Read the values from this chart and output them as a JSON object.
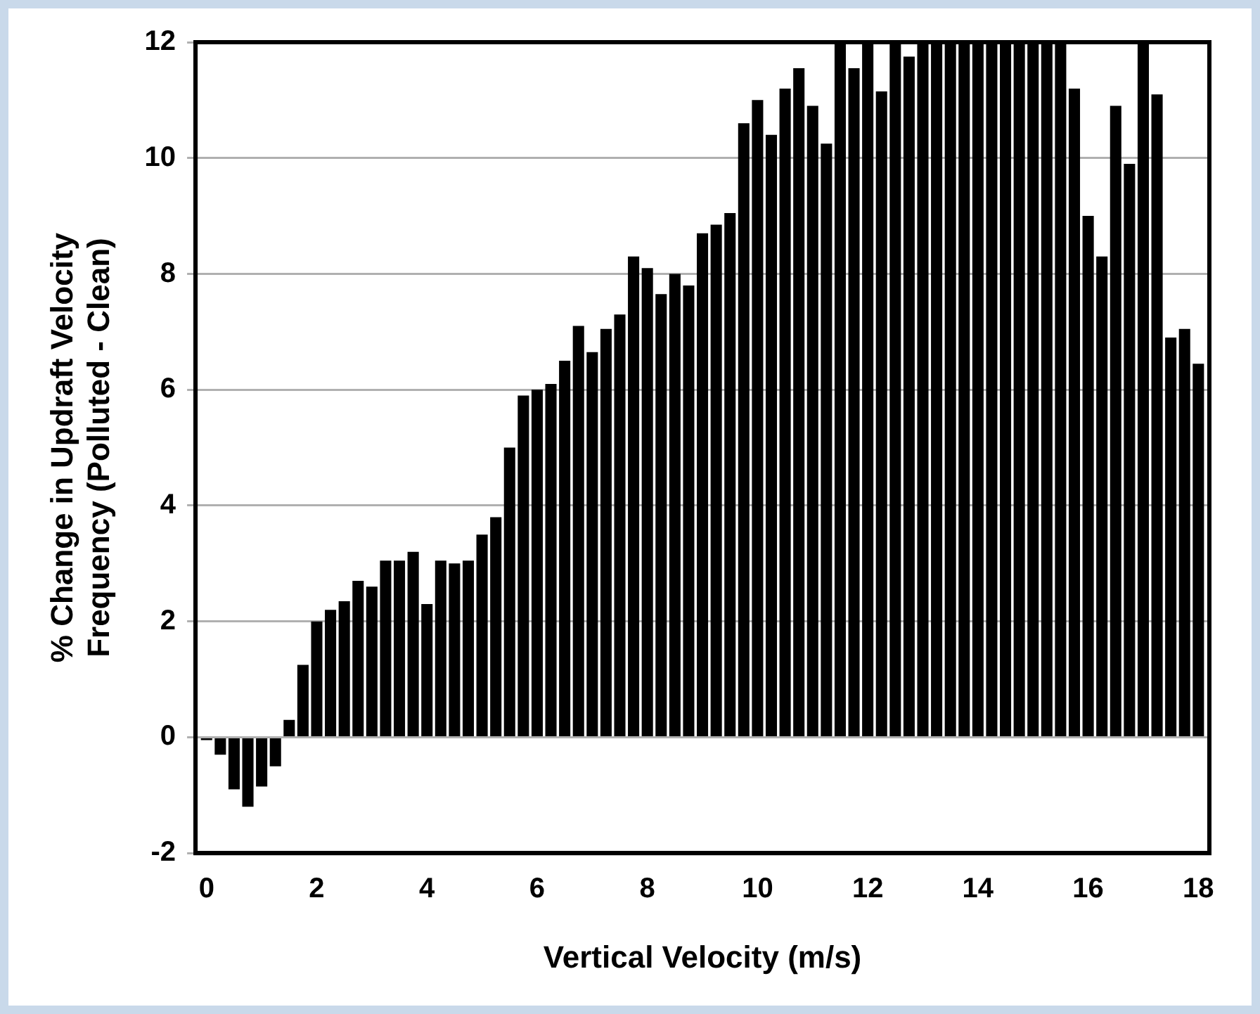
{
  "chart_data": {
    "type": "bar",
    "xlabel": "Vertical Velocity (m/s)",
    "ylabel": "% Change in Updraft Velocity\nFrequency (Polluted - Clean)",
    "x": [
      0,
      0.25,
      0.5,
      0.75,
      1,
      1.25,
      1.5,
      1.75,
      2,
      2.25,
      2.5,
      2.75,
      3,
      3.25,
      3.5,
      3.75,
      4,
      4.25,
      4.5,
      4.75,
      5,
      5.25,
      5.5,
      5.75,
      6,
      6.25,
      6.5,
      6.75,
      7,
      7.25,
      7.5,
      7.75,
      8,
      8.25,
      8.5,
      8.75,
      9,
      9.25,
      9.5,
      9.75,
      10,
      10.25,
      10.5,
      10.75,
      11,
      11.25,
      11.5,
      11.75,
      12,
      12.25,
      12.5,
      12.75,
      13,
      13.25,
      13.5,
      13.75,
      14,
      14.25,
      14.5,
      14.75,
      15,
      15.25,
      15.5,
      15.75,
      16,
      16.25,
      16.5,
      16.75,
      17,
      17.25,
      17.5,
      17.75,
      18
    ],
    "values": [
      -0.05,
      -0.3,
      -0.9,
      -1.2,
      -0.85,
      -0.5,
      0.3,
      1.25,
      2.0,
      2.2,
      2.35,
      2.7,
      2.6,
      3.05,
      3.05,
      3.2,
      2.3,
      3.05,
      3.0,
      3.05,
      3.5,
      3.8,
      5.0,
      5.9,
      6.0,
      6.1,
      6.5,
      7.1,
      6.65,
      7.05,
      7.3,
      8.3,
      8.1,
      7.65,
      8.0,
      7.8,
      8.7,
      8.85,
      9.05,
      10.6,
      11.0,
      10.4,
      11.2,
      11.55,
      10.9,
      10.25,
      12,
      11.55,
      12,
      11.15,
      12,
      11.75,
      12,
      12,
      12,
      12,
      12,
      12,
      12,
      12,
      12,
      12,
      12,
      11.2,
      9.0,
      8.3,
      10.9,
      9.9,
      12,
      11.1,
      6.9,
      7.05,
      6.45
    ],
    "color": "#000000",
    "xlim": [
      -0.2,
      18.2
    ],
    "xticks": [
      0,
      2,
      4,
      6,
      8,
      10,
      12,
      14,
      16,
      18
    ],
    "ylim": [
      -2,
      12
    ],
    "yticks": [
      -2,
      0,
      2,
      4,
      6,
      8,
      10,
      12
    ],
    "grid": "y",
    "legend": false
  }
}
